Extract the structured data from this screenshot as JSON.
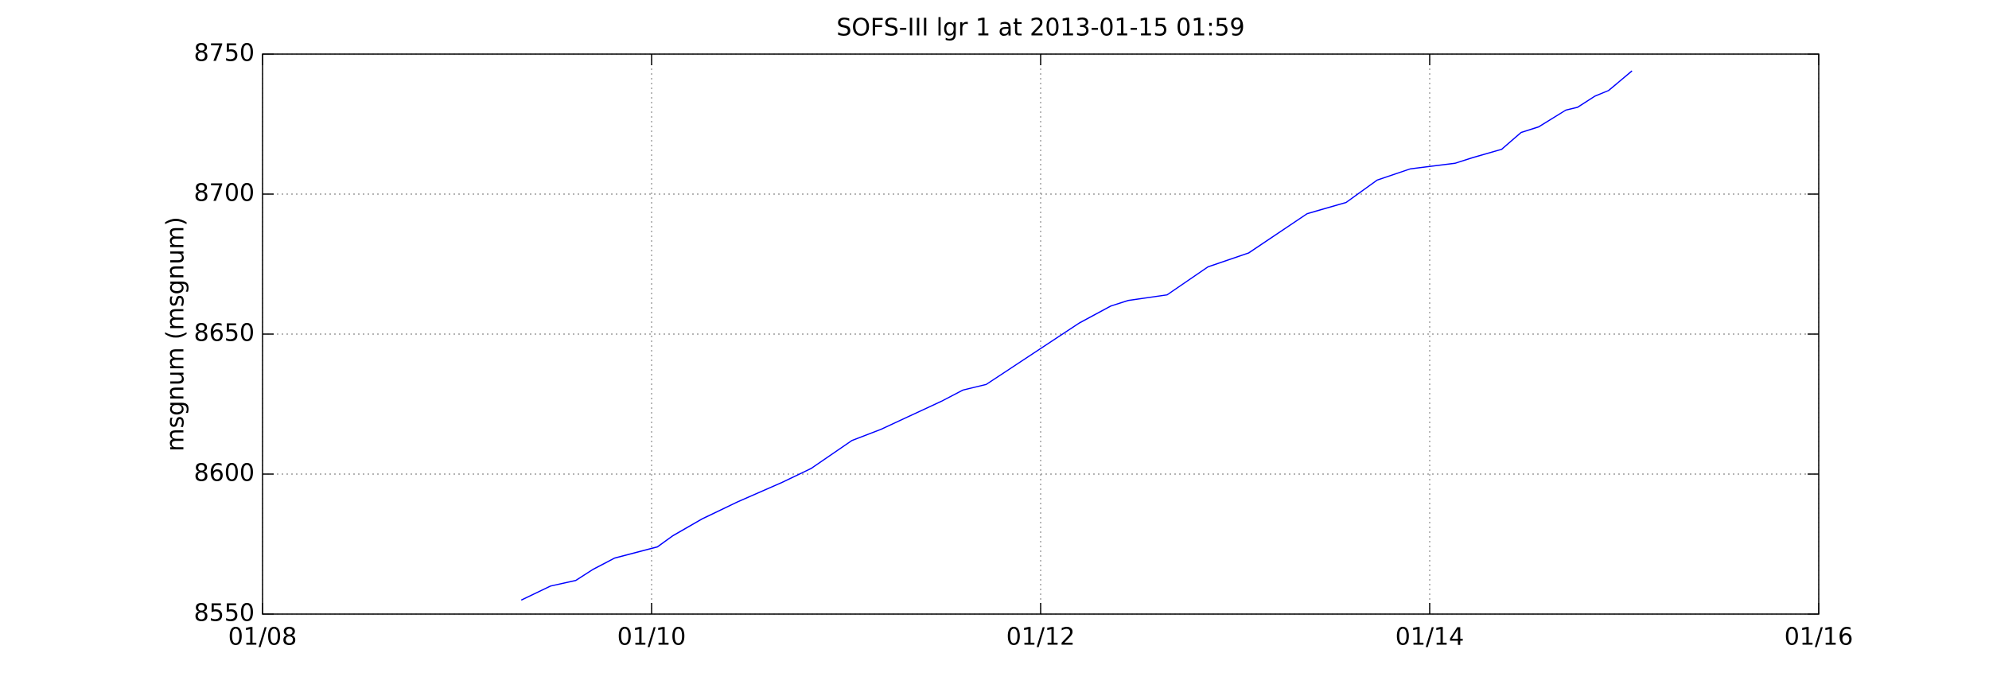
{
  "chart_data": {
    "type": "line",
    "title": "SOFS-III lgr 1 at 2013-01-15 01:59",
    "y_label": "msgnum (msgnum)",
    "xlim": [
      8,
      16
    ],
    "xticks": [
      {
        "value": 8,
        "label": "01/08"
      },
      {
        "value": 10,
        "label": "01/10"
      },
      {
        "value": 12,
        "label": "01/12"
      },
      {
        "value": 14,
        "label": "01/14"
      },
      {
        "value": 16,
        "label": "01/16"
      }
    ],
    "ylim": [
      8550,
      8750
    ],
    "yticks": [
      8550,
      8600,
      8650,
      8700,
      8750
    ],
    "grid": true,
    "series": [
      {
        "color": "#0000ff",
        "x": [
          9.33,
          9.48,
          9.61,
          9.7,
          9.81,
          10.03,
          10.11,
          10.26,
          10.44,
          10.67,
          10.82,
          11.03,
          11.18,
          11.49,
          11.6,
          11.72,
          12.2,
          12.36,
          12.45,
          12.65,
          12.86,
          13.07,
          13.37,
          13.57,
          13.73,
          13.9,
          14.13,
          14.22,
          14.37,
          14.47,
          14.56,
          14.7,
          14.76,
          14.85,
          14.92,
          15.04
        ],
        "values": [
          8555,
          8560,
          8562,
          8566,
          8570,
          8574,
          8578,
          8584,
          8590,
          8597,
          8602,
          8612,
          8616,
          8626,
          8630,
          8632,
          8654,
          8660,
          8662,
          8664,
          8674,
          8679,
          8693,
          8697,
          8705,
          8709,
          8711,
          8713,
          8716,
          8722,
          8724,
          8730,
          8731,
          8735,
          8737,
          8744
        ]
      }
    ]
  }
}
